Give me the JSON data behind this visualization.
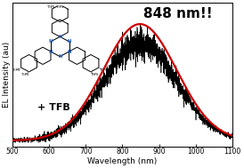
{
  "title": "848 nm!!",
  "xlabel": "Wavelength (nm)",
  "ylabel": "EL Intensity (au)",
  "xlim": [
    500,
    1100
  ],
  "peak_nm": 848,
  "sigma_nm": 100,
  "gaussian_color": "#cc0000",
  "noise_color": "#000000",
  "background_color": "#ffffff",
  "annotation": "+ TFB",
  "title_fontsize": 11,
  "axis_fontsize": 6.5,
  "tick_fontsize": 5.5,
  "annotation_fontsize": 8
}
